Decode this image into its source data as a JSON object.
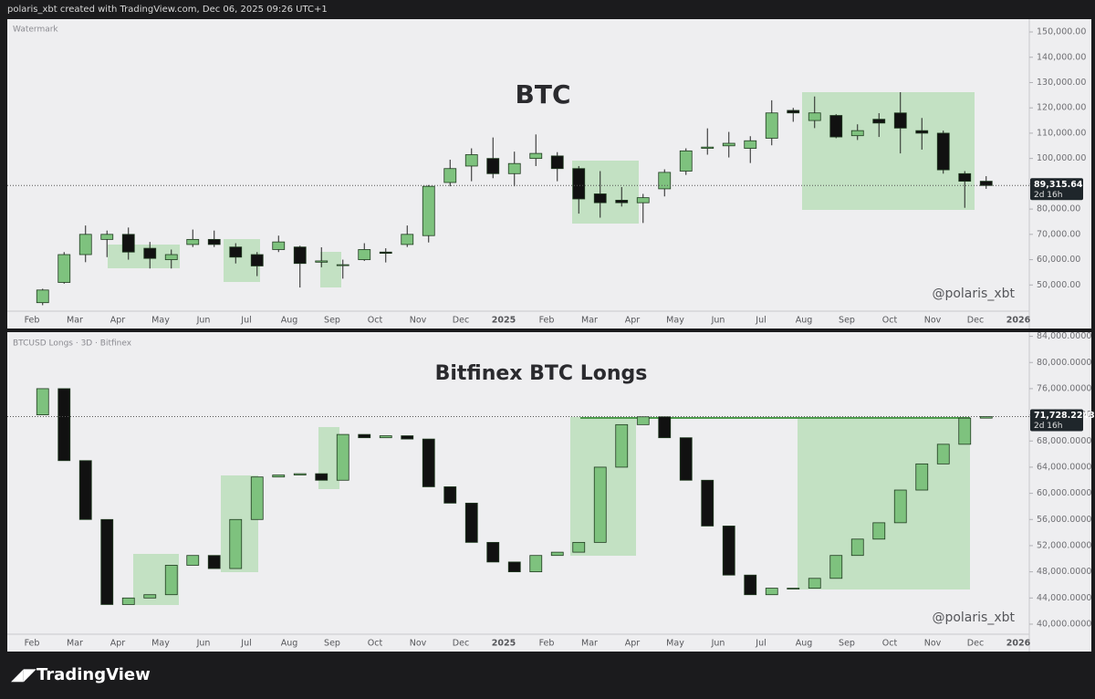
{
  "header": "polaris_xbt created with TradingView.com, Dec 06, 2025 09:26 UTC+1",
  "footer": "TradingView",
  "chart_data": [
    {
      "type": "candlestick",
      "title": "BTC",
      "pane_label": "Watermark",
      "signature": "@polaris_xbt",
      "categories": [
        "Feb",
        null,
        "Mar",
        null,
        "Apr",
        null,
        "May",
        null,
        "Jun",
        null,
        "Jul",
        null,
        "Aug",
        null,
        "Sep",
        null,
        "Oct",
        null,
        "Nov",
        null,
        "Dec",
        null,
        "2025",
        null,
        "Feb",
        null,
        "Mar",
        null,
        "Apr",
        null,
        "May",
        null,
        "Jun",
        null,
        "Jul",
        null,
        "Aug",
        null,
        "Sep",
        null,
        "Oct",
        null,
        "Nov",
        null,
        "Dec",
        null,
        "2026"
      ],
      "open": [
        43000,
        51000,
        62000,
        68000,
        70000,
        64500,
        60000,
        66000,
        68000,
        65000,
        62000,
        64000,
        65000,
        59000,
        58000,
        60000,
        63000,
        66000,
        69500,
        90500,
        97000,
        100000,
        94000,
        100000,
        101000,
        96000,
        86000,
        83500,
        82500,
        88000,
        95000,
        104000,
        105000,
        104000,
        108000,
        119000,
        115000,
        117000,
        109000,
        115500,
        118000,
        111000,
        110000,
        94000,
        91000,
        null,
        null
      ],
      "high": [
        48500,
        63000,
        73500,
        71500,
        72700,
        67000,
        64000,
        71900,
        71500,
        66500,
        63000,
        69500,
        65500,
        64900,
        60000,
        66500,
        64500,
        73500,
        89500,
        99500,
        104000,
        108300,
        102700,
        109500,
        102500,
        97000,
        95000,
        88700,
        86000,
        95700,
        104000,
        111900,
        110500,
        108800,
        123000,
        120000,
        124500,
        117500,
        113500,
        117900,
        126200,
        116000,
        111000,
        95000,
        93000,
        null,
        null
      ],
      "low": [
        42000,
        50500,
        59000,
        61000,
        60000,
        56500,
        56500,
        65000,
        65000,
        58500,
        53500,
        63000,
        49000,
        57000,
        52500,
        59500,
        58900,
        65000,
        66800,
        89000,
        91000,
        92200,
        89000,
        97000,
        91000,
        78200,
        76600,
        81000,
        74500,
        85000,
        93500,
        101500,
        100400,
        98200,
        105200,
        114500,
        112000,
        108000,
        107300,
        108500,
        102000,
        103500,
        94000,
        80500,
        88000,
        null,
        null
      ],
      "close": [
        48000,
        62000,
        70000,
        70000,
        63000,
        60500,
        62000,
        68000,
        66000,
        61000,
        57500,
        67000,
        58500,
        59500,
        58000,
        64000,
        62500,
        70000,
        89000,
        96000,
        101500,
        94000,
        98000,
        102000,
        96000,
        84000,
        82500,
        82500,
        84500,
        94500,
        103000,
        104500,
        106000,
        107000,
        118000,
        118000,
        118000,
        108500,
        111000,
        114000,
        112000,
        110000,
        95500,
        91000,
        89315.64,
        null,
        null
      ],
      "ylim": [
        40000,
        154700
      ],
      "yticks": [
        {
          "value": 50000,
          "label": "50,000.00"
        },
        {
          "value": 60000,
          "label": "60,000.00"
        },
        {
          "value": 70000,
          "label": "70,000.00"
        },
        {
          "value": 80000,
          "label": "80,000.00"
        },
        {
          "value": 90000,
          "label": "90,000.00"
        },
        {
          "value": 100000,
          "label": "100,000.00"
        },
        {
          "value": 110000,
          "label": "110,000.00"
        },
        {
          "value": 120000,
          "label": "120,000.00"
        },
        {
          "value": 130000,
          "label": "130,000.00"
        },
        {
          "value": 140000,
          "label": "140,000.00"
        },
        {
          "value": 150000,
          "label": "150,000.00"
        }
      ],
      "last_price": {
        "value": 89315.64,
        "label": "89,315.64"
      },
      "countdown": "2d 16h",
      "up_color": "#7ec27e",
      "down_color": "#111111"
    },
    {
      "type": "candlestick",
      "title": "Bitfinex BTC Longs",
      "pane_label": "BTCUSD Longs · 3D · Bitfinex",
      "signature": "@polaris_xbt",
      "categories": [
        "Feb",
        null,
        "Mar",
        null,
        "Apr",
        null,
        "May",
        null,
        "Jun",
        null,
        "Jul",
        null,
        "Aug",
        null,
        "Sep",
        null,
        "Oct",
        null,
        "Nov",
        null,
        "Dec",
        null,
        "2025",
        null,
        "Feb",
        null,
        "Mar",
        null,
        "Apr",
        null,
        "May",
        null,
        "Jun",
        null,
        "Jul",
        null,
        "Aug",
        null,
        "Sep",
        null,
        "Oct",
        null,
        "Nov",
        null,
        "Dec",
        null,
        "2026"
      ],
      "open": [
        72000,
        76000,
        65000,
        56000,
        43000,
        44000,
        44500,
        49000,
        50500,
        48500,
        56000,
        62500,
        62800,
        63000,
        62000,
        69000,
        68500,
        68800,
        68300,
        61000,
        58500,
        52500,
        49500,
        48000,
        50500,
        51000,
        52500,
        64000,
        70500,
        71700,
        68500,
        62000,
        55000,
        47500,
        44500,
        45500,
        45500,
        47000,
        50500,
        53000,
        55500,
        60500,
        64500,
        67500,
        71500,
        null,
        null
      ],
      "close": [
        76000,
        65000,
        56000,
        43000,
        44000,
        44500,
        49000,
        50500,
        48500,
        56000,
        62500,
        62800,
        63000,
        62000,
        69000,
        68500,
        68800,
        68300,
        61000,
        58500,
        52500,
        49500,
        48000,
        50500,
        51000,
        52500,
        64000,
        70500,
        71700,
        68500,
        62000,
        55000,
        47500,
        44500,
        45500,
        45500,
        47000,
        50500,
        53000,
        55500,
        60500,
        64500,
        67500,
        71500,
        71728.2243,
        null,
        null
      ],
      "ylim": [
        38600,
        84500
      ],
      "yticks": [
        {
          "value": 40000,
          "label": "40,000.0000"
        },
        {
          "value": 44000,
          "label": "44,000.0000"
        },
        {
          "value": 48000,
          "label": "48,000.0000"
        },
        {
          "value": 52000,
          "label": "52,000.0000"
        },
        {
          "value": 56000,
          "label": "56,000.0000"
        },
        {
          "value": 60000,
          "label": "60,000.0000"
        },
        {
          "value": 64000,
          "label": "64,000.0000"
        },
        {
          "value": 68000,
          "label": "68,000.0000"
        },
        {
          "value": 72000,
          "label": "72,000.0000"
        },
        {
          "value": 76000,
          "label": "76,000.0000"
        },
        {
          "value": 80000,
          "label": "80,000.0000"
        },
        {
          "value": 84000,
          "label": "84,000.0000"
        }
      ],
      "last_price": {
        "value": 71728.2243,
        "label": "71,728.2243"
      },
      "countdown": "2d 16h",
      "up_color": "#7ec27e",
      "down_color": "#111111"
    }
  ]
}
